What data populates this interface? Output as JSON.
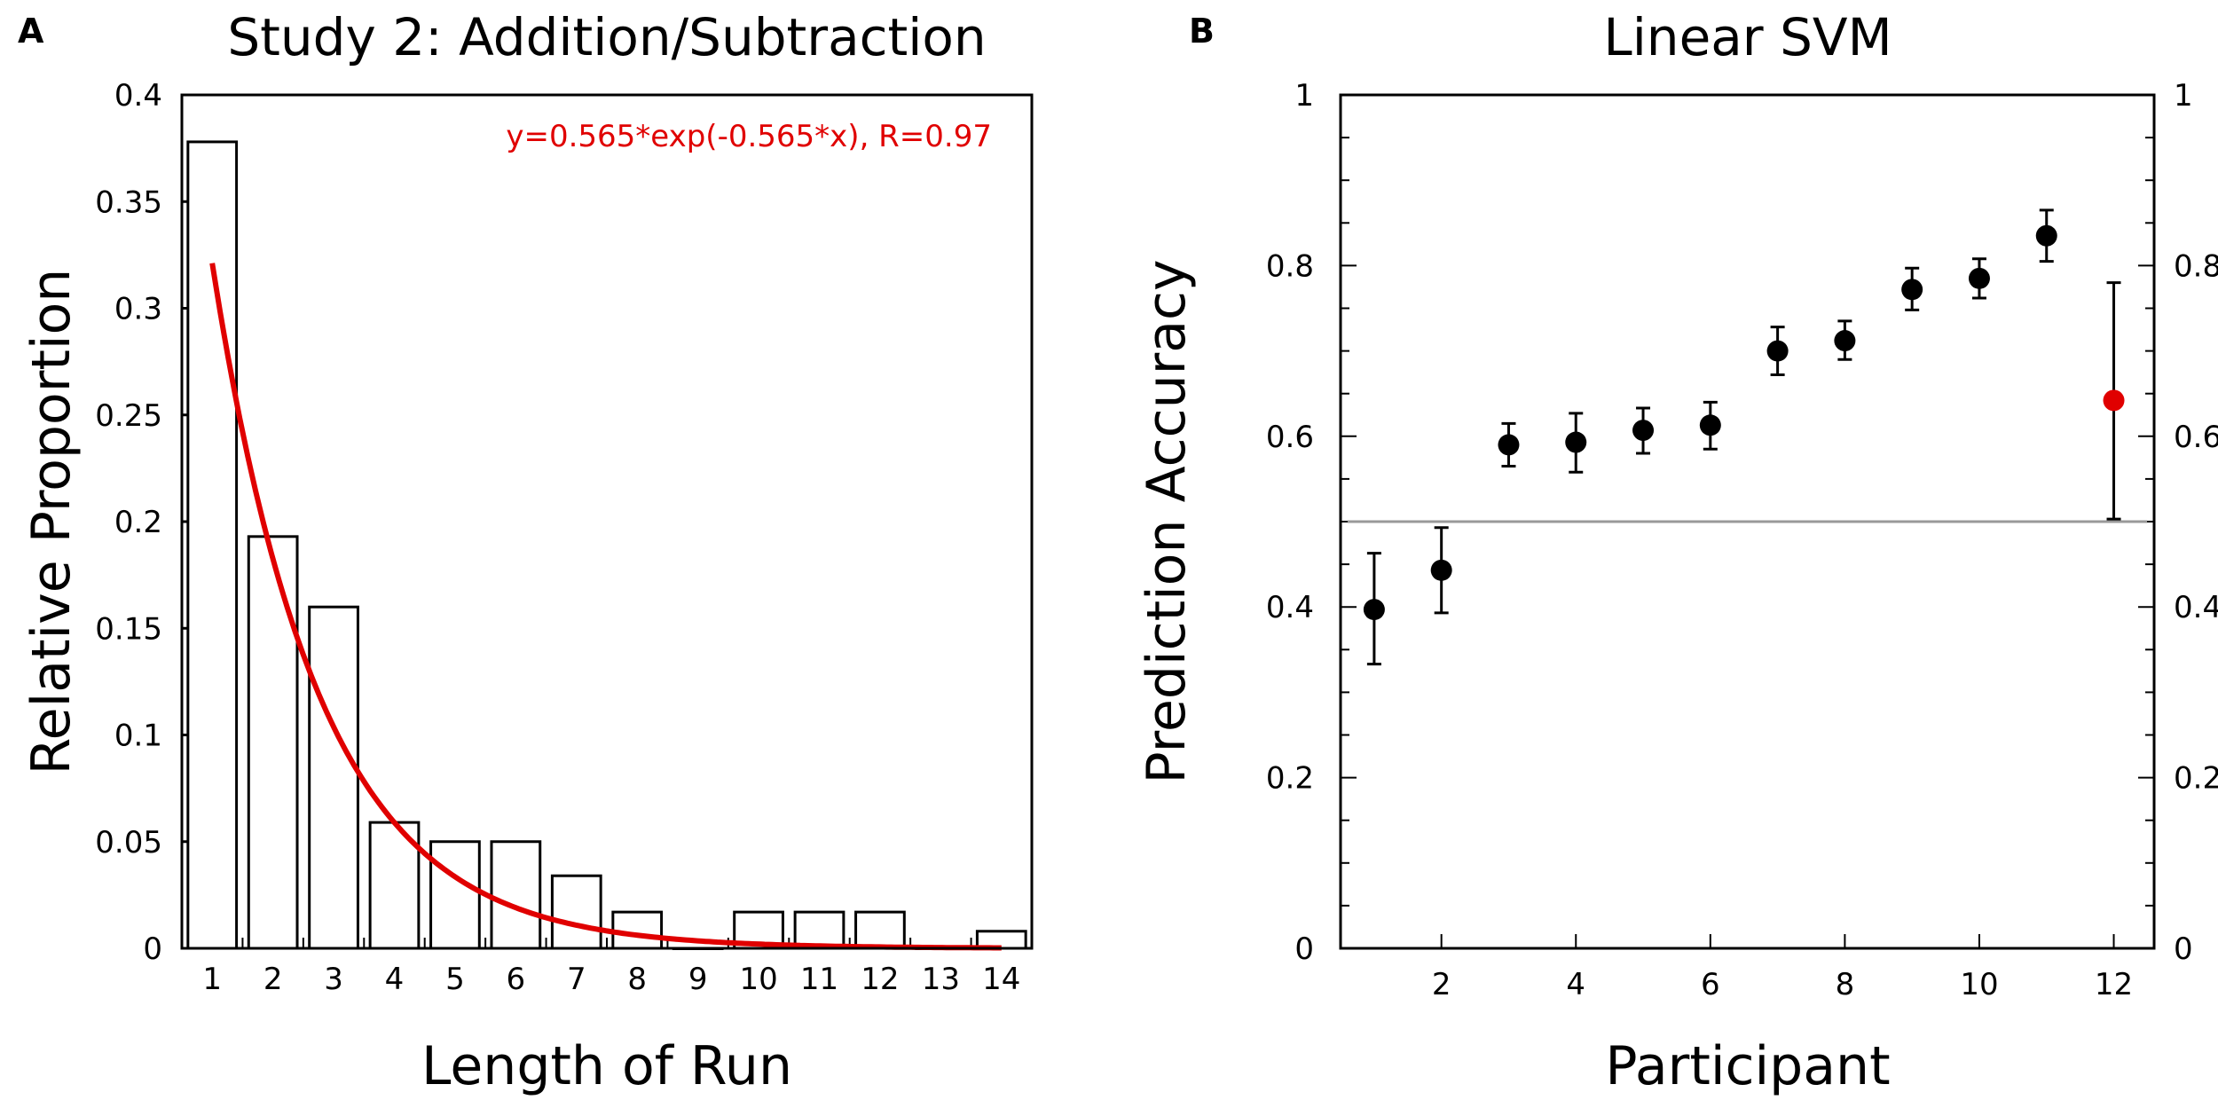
{
  "chart_data": [
    {
      "panel_label": "A",
      "type": "bar",
      "title": "Study 2: Addition/Subtraction",
      "xlabel": "Length of Run",
      "ylabel": "Relative Proportion",
      "categories": [
        "1",
        "2",
        "3",
        "4",
        "5",
        "6",
        "7",
        "8",
        "9",
        "10",
        "11",
        "12",
        "13",
        "14"
      ],
      "values": [
        0.378,
        0.193,
        0.16,
        0.059,
        0.05,
        0.05,
        0.034,
        0.017,
        0.0,
        0.017,
        0.017,
        0.017,
        0.0,
        0.008
      ],
      "ylim": [
        0,
        0.4
      ],
      "yticks": [
        "0",
        "0.05",
        "0.1",
        "0.15",
        "0.2",
        "0.25",
        "0.3",
        "0.35",
        "0.4"
      ],
      "fit": {
        "label": "y=0.565*exp(-0.565*x), R=0.97",
        "a": 0.565,
        "b": 0.565,
        "x_range": [
          1,
          14
        ],
        "color": "#e00000"
      },
      "grid": false
    },
    {
      "panel_label": "B",
      "type": "scatter",
      "title": "Linear SVM",
      "xlabel": "Participant",
      "ylabel": "Prediction Accuracy",
      "x": [
        1,
        2,
        3,
        4,
        5,
        6,
        7,
        8,
        9,
        10,
        11,
        12
      ],
      "y": [
        0.397,
        0.443,
        0.59,
        0.593,
        0.607,
        0.613,
        0.7,
        0.712,
        0.772,
        0.785,
        0.835,
        0.642
      ],
      "err_low": [
        0.333,
        0.393,
        0.565,
        0.558,
        0.58,
        0.585,
        0.672,
        0.69,
        0.748,
        0.762,
        0.805,
        0.503
      ],
      "err_high": [
        0.463,
        0.493,
        0.615,
        0.627,
        0.633,
        0.64,
        0.728,
        0.735,
        0.797,
        0.808,
        0.865,
        0.78
      ],
      "point_colors": [
        "#000000",
        "#000000",
        "#000000",
        "#000000",
        "#000000",
        "#000000",
        "#000000",
        "#000000",
        "#000000",
        "#000000",
        "#000000",
        "#e00000"
      ],
      "xlim": [
        0.5,
        12.6
      ],
      "xticks": [
        "2",
        "4",
        "6",
        "8",
        "10",
        "12"
      ],
      "ylim": [
        0,
        1
      ],
      "yticks": [
        "0",
        "0.2",
        "0.4",
        "0.6",
        "0.8",
        "1"
      ],
      "reference_line": 0.5,
      "reference_color": "#999999",
      "grid": false
    }
  ]
}
